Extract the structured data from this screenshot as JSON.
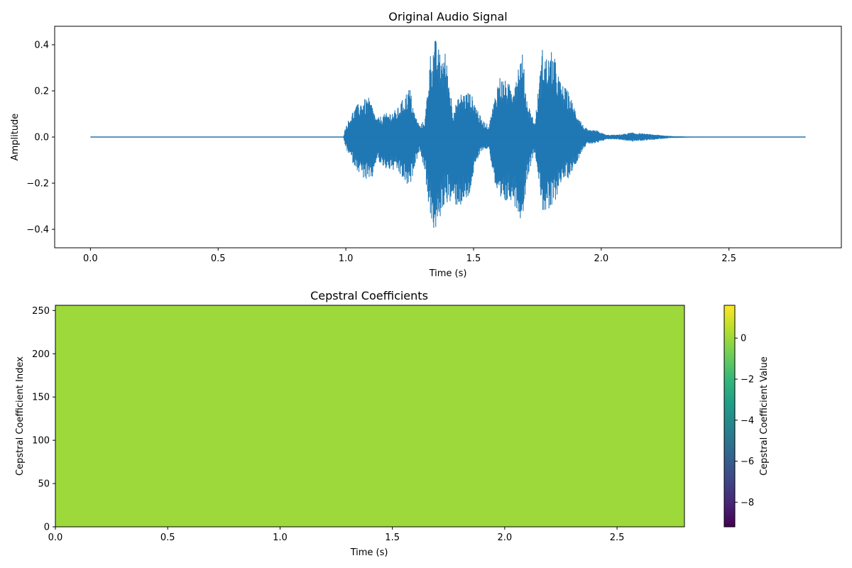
{
  "chart_data": [
    {
      "type": "line",
      "title": "Original Audio Signal",
      "xlabel": "Time (s)",
      "ylabel": "Amplitude",
      "xlim": [
        -0.14,
        2.94
      ],
      "ylim": [
        -0.48,
        0.48
      ],
      "x_ticks": [
        0.0,
        0.5,
        1.0,
        1.5,
        2.0,
        2.5
      ],
      "x_tick_labels": [
        "0.0",
        "0.5",
        "1.0",
        "1.5",
        "2.0",
        "2.5"
      ],
      "y_ticks": [
        -0.4,
        -0.2,
        0.0,
        0.2,
        0.4
      ],
      "y_tick_labels": [
        "−0.4",
        "−0.2",
        "0.0",
        "0.2",
        "0.4"
      ],
      "color": "#1f77b4",
      "grid": false,
      "series": [
        {
          "x": [
            0.0,
            0.99,
            1.0,
            1.03,
            1.06,
            1.09,
            1.1,
            1.12,
            1.15,
            1.2,
            1.25,
            1.27,
            1.29,
            1.31,
            1.33,
            1.35,
            1.37,
            1.39,
            1.42,
            1.45,
            1.48,
            1.5,
            1.53,
            1.56,
            1.6,
            1.62,
            1.65,
            1.69,
            1.71,
            1.74,
            1.77,
            1.79,
            1.81,
            1.84,
            1.87,
            1.9,
            1.93,
            1.95,
            1.98,
            2.02,
            2.06,
            2.12,
            2.17,
            2.22,
            2.27,
            2.34,
            2.8
          ],
          "envelope_upper": [
            0.0,
            0.0,
            0.05,
            0.12,
            0.16,
            0.17,
            0.15,
            0.08,
            0.1,
            0.12,
            0.22,
            0.1,
            0.05,
            0.08,
            0.36,
            0.43,
            0.36,
            0.37,
            0.12,
            0.19,
            0.2,
            0.17,
            0.08,
            0.05,
            0.27,
            0.25,
            0.22,
            0.38,
            0.16,
            0.06,
            0.39,
            0.34,
            0.38,
            0.24,
            0.2,
            0.12,
            0.05,
            0.03,
            0.03,
            0.01,
            0.01,
            0.02,
            0.015,
            0.01,
            0.005,
            0.002,
            0.0
          ],
          "envelope_lower": [
            0.0,
            0.0,
            -0.05,
            -0.12,
            -0.17,
            -0.2,
            -0.2,
            -0.1,
            -0.14,
            -0.15,
            -0.23,
            -0.12,
            -0.06,
            -0.16,
            -0.35,
            -0.43,
            -0.35,
            -0.28,
            -0.3,
            -0.3,
            -0.28,
            -0.16,
            -0.06,
            -0.05,
            -0.32,
            -0.3,
            -0.27,
            -0.37,
            -0.18,
            -0.06,
            -0.32,
            -0.34,
            -0.32,
            -0.2,
            -0.18,
            -0.12,
            -0.05,
            -0.03,
            -0.03,
            -0.01,
            -0.01,
            -0.02,
            -0.015,
            -0.01,
            -0.005,
            -0.002,
            0.0
          ]
        }
      ]
    },
    {
      "type": "heatmap",
      "title": "Cepstral Coefficients",
      "xlabel": "Time (s)",
      "ylabel": "Cepstral Coefficient Index",
      "xlim": [
        0.0,
        2.8
      ],
      "ylim": [
        0,
        256
      ],
      "x_ticks": [
        0.0,
        0.5,
        1.0,
        1.5,
        2.0,
        2.5
      ],
      "x_tick_labels": [
        "0.0",
        "0.5",
        "1.0",
        "1.5",
        "2.0",
        "2.5"
      ],
      "y_ticks": [
        0,
        50,
        100,
        150,
        200,
        250
      ],
      "y_tick_labels": [
        "0",
        "50",
        "100",
        "150",
        "200",
        "250"
      ],
      "fill_color": "#9dd93b",
      "dominant_value": 0.0,
      "colormap": "viridis",
      "colorbar": {
        "label": "Cepstral Coefficient Value",
        "vmin": -9.2,
        "vmax": 1.6,
        "ticks": [
          0,
          -2,
          -4,
          -6,
          -8
        ],
        "tick_labels": [
          "0",
          "−2",
          "−4",
          "−6",
          "−8"
        ],
        "colors": [
          "#440154",
          "#482878",
          "#3e4989",
          "#31688e",
          "#26828e",
          "#1f9e89",
          "#35b779",
          "#6ece58",
          "#b5de2b",
          "#fde725"
        ]
      }
    }
  ]
}
